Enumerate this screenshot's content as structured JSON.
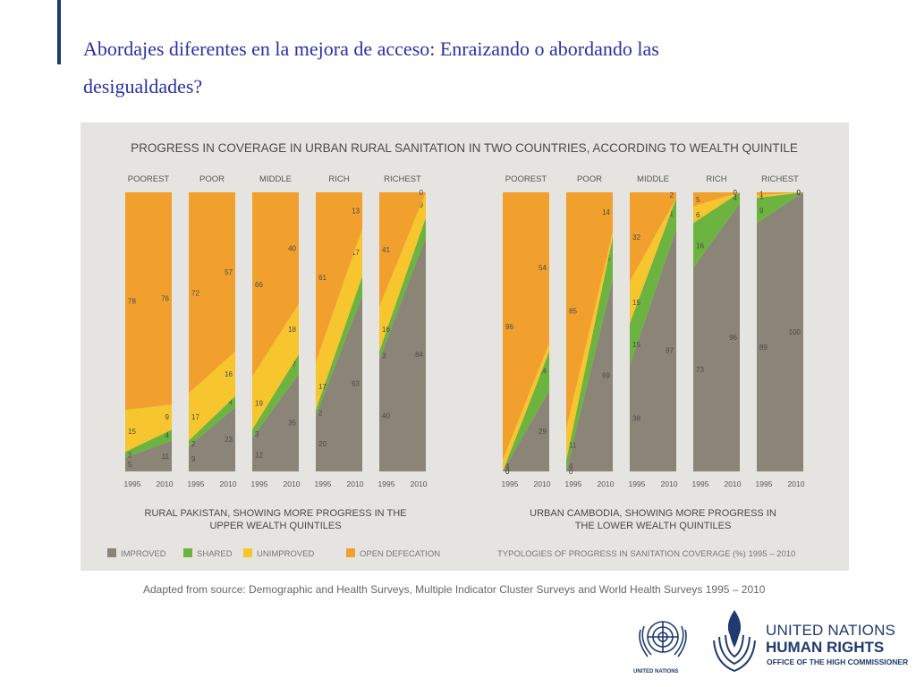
{
  "slide": {
    "title": "Abordajes diferentes en la mejora de acceso: Enraizando o abordando las desigualdades?",
    "source": "Adapted from source: Demographic and Health Surveys, Multiple Indicator Cluster Surveys and World Health Surveys 1995 – 2010"
  },
  "logos": {
    "un": "UNITED NATIONS",
    "hr_line1": "UNITED NATIONS",
    "hr_line2": "HUMAN RIGHTS",
    "hr_line3": "OFFICE OF THE HIGH COMMISSIONER"
  },
  "colors": {
    "improved": "#8b8578",
    "shared": "#6cb33f",
    "unimproved": "#f7c52d",
    "open_defecation": "#f2a02d",
    "panel": "#e5e4e0",
    "text": "#4a4a4a"
  },
  "chart_data": {
    "type": "area",
    "title": "PROGRESS IN COVERAGE IN URBAN RURAL SANITATION IN TWO COUNTRIES, ACCORDING TO WEALTH QUINTILE",
    "footer_right": "TYPOLOGIES OF PROGRESS IN SANITATION COVERAGE (%) 1995 – 2010",
    "years": [
      "1995",
      "2010"
    ],
    "legend": [
      {
        "key": "improved",
        "label": "IMPROVED"
      },
      {
        "key": "shared",
        "label": "SHARED"
      },
      {
        "key": "unimproved",
        "label": "UNIMPROVED"
      },
      {
        "key": "open_defecation",
        "label": "OPEN DEFECATION"
      }
    ],
    "groups": [
      {
        "caption_lines": [
          "RURAL PAKISTAN, SHOWING MORE PROGRESS IN THE",
          "UPPER WEALTH QUINTILES"
        ],
        "quintiles": [
          {
            "name": "POOREST",
            "y1995": {
              "improved": 5,
              "shared": 2,
              "unimproved": 15,
              "open_defecation": 78
            },
            "y2010": {
              "improved": 11,
              "shared": 4,
              "unimproved": 9,
              "open_defecation": 76
            }
          },
          {
            "name": "POOR",
            "y1995": {
              "improved": 9,
              "shared": 2,
              "unimproved": 17,
              "open_defecation": 72
            },
            "y2010": {
              "improved": 23,
              "shared": 4,
              "unimproved": 16,
              "open_defecation": 57
            }
          },
          {
            "name": "MIDDLE",
            "y1995": {
              "improved": 12,
              "shared": 3,
              "unimproved": 19,
              "open_defecation": 66
            },
            "y2010": {
              "improved": 35,
              "shared": 7,
              "unimproved": 18,
              "open_defecation": 40
            }
          },
          {
            "name": "RICH",
            "y1995": {
              "improved": 20,
              "shared": 2,
              "unimproved": 17,
              "open_defecation": 61
            },
            "y2010": {
              "improved": 63,
              "shared": 7,
              "unimproved": 17,
              "open_defecation": 13
            }
          },
          {
            "name": "RICHEST",
            "y1995": {
              "improved": 40,
              "shared": 3,
              "unimproved": 16,
              "open_defecation": 41
            },
            "y2010": {
              "improved": 84,
              "shared": 7,
              "unimproved": 9,
              "open_defecation": 0
            }
          }
        ]
      },
      {
        "caption_lines": [
          "URBAN CAMBODIA, SHOWING MORE PROGRESS IN",
          "THE LOWER WEALTH QUINTILES"
        ],
        "quintiles": [
          {
            "name": "POOREST",
            "y1995": {
              "improved": 0,
              "shared": 0,
              "unimproved": 4,
              "open_defecation": 96
            },
            "y2010": {
              "improved": 29,
              "shared": 14,
              "unimproved": 3,
              "open_defecation": 54
            }
          },
          {
            "name": "POOR",
            "y1995": {
              "improved": 0,
              "shared": 4,
              "unimproved": 11,
              "open_defecation": 85
            },
            "y2010": {
              "improved": 69,
              "shared": 15,
              "unimproved": 2,
              "open_defecation": 14
            }
          },
          {
            "name": "MIDDLE",
            "y1995": {
              "improved": 38,
              "shared": 15,
              "unimproved": 15,
              "open_defecation": 32
            },
            "y2010": {
              "improved": 87,
              "shared": 11,
              "unimproved": 0,
              "open_defecation": 2
            }
          },
          {
            "name": "RICH",
            "y1995": {
              "improved": 73,
              "shared": 16,
              "unimproved": 6,
              "open_defecation": 5
            },
            "y2010": {
              "improved": 96,
              "shared": 4,
              "unimproved": 0,
              "open_defecation": 0
            }
          },
          {
            "name": "RICHEST",
            "y1995": {
              "improved": 89,
              "shared": 9,
              "unimproved": 1,
              "open_defecation": 1
            },
            "y2010": {
              "improved": 100,
              "shared": 0,
              "unimproved": 0,
              "open_defecation": 0
            }
          }
        ]
      }
    ]
  }
}
